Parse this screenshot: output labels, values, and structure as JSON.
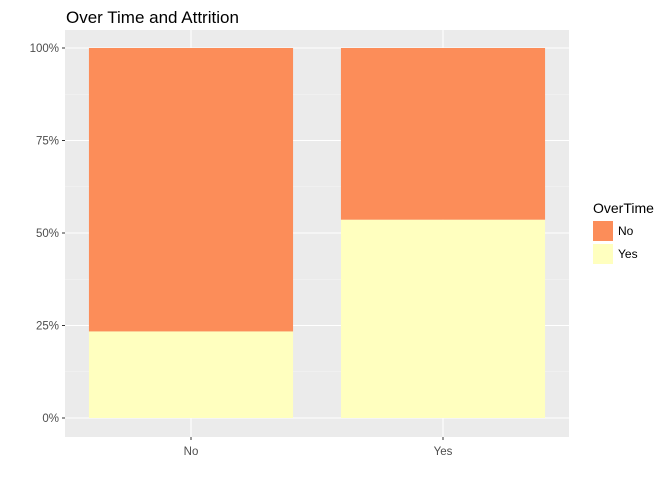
{
  "chart_data": {
    "type": "bar",
    "stacked": true,
    "position": "fill",
    "title": "Over Time and Attrition",
    "xlabel": "",
    "ylabel": "",
    "categories": [
      "No",
      "Yes"
    ],
    "series": [
      {
        "name": "No",
        "values": [
          0.766,
          0.464
        ]
      },
      {
        "name": "Yes",
        "values": [
          0.234,
          0.536
        ]
      }
    ],
    "ylim": [
      0,
      1
    ],
    "yticks": [
      0,
      0.25,
      0.5,
      0.75,
      1
    ],
    "ytick_labels": [
      "0%",
      "25%",
      "50%",
      "75%",
      "100%"
    ],
    "grid": true,
    "legend": {
      "title": "OverTime",
      "placement": "right"
    }
  },
  "colors": {
    "No": "#FC8D59",
    "Yes": "#FFFFBF",
    "panel": "#EBEBEB",
    "grid_major": "#FFFFFF",
    "grid_minor": "#F5F5F5",
    "tick": "#333333"
  }
}
